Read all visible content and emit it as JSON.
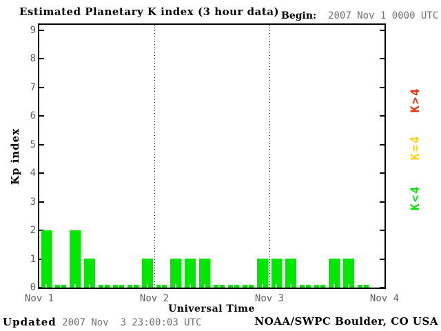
{
  "header": {
    "title": "Estimated Planetary K index (3 hour data)",
    "begin_label": "Begin:",
    "begin_value": "2007 Nov 1 0000 UTC"
  },
  "footer": {
    "updated_label": "Updated",
    "updated_value": "2007 Nov  3 23:00:03 UTC",
    "credit": "NOAA/SWPC Boulder, CO USA"
  },
  "chart_data": {
    "type": "bar",
    "title": "Estimated Planetary K index (3 hour data)",
    "xlabel": "Universal Time",
    "ylabel": "Kp index",
    "ylim": [
      0,
      9
    ],
    "y_ticks": [
      0,
      1,
      2,
      3,
      4,
      5,
      6,
      7,
      8,
      9
    ],
    "x_ticks": [
      "Nov 1",
      "Nov 2",
      "Nov 3",
      "Nov 4"
    ],
    "x_span_days": 3,
    "bar_interval_hours": 3,
    "values": [
      2,
      0,
      2,
      1,
      0,
      0,
      0,
      1,
      0,
      1,
      1,
      1,
      0,
      0,
      0,
      1,
      1,
      1,
      0,
      0,
      1,
      1,
      0,
      null
    ],
    "bar_color_rule": "green if K<4, yellow if K=4, red if K>4",
    "colors": {
      "k_lt4": "#00e800",
      "k_eq4": "#ffd400",
      "k_gt4": "#ff2a00",
      "tick_label": "#5f5f5f"
    },
    "day_gridlines_at": [
      "Nov 2",
      "Nov 3"
    ],
    "legend": [
      {
        "label": "K>4",
        "color": "#ff2a00"
      },
      {
        "label": "K=4",
        "color": "#ffd400"
      },
      {
        "label": "K<4",
        "color": "#00e800"
      }
    ]
  }
}
